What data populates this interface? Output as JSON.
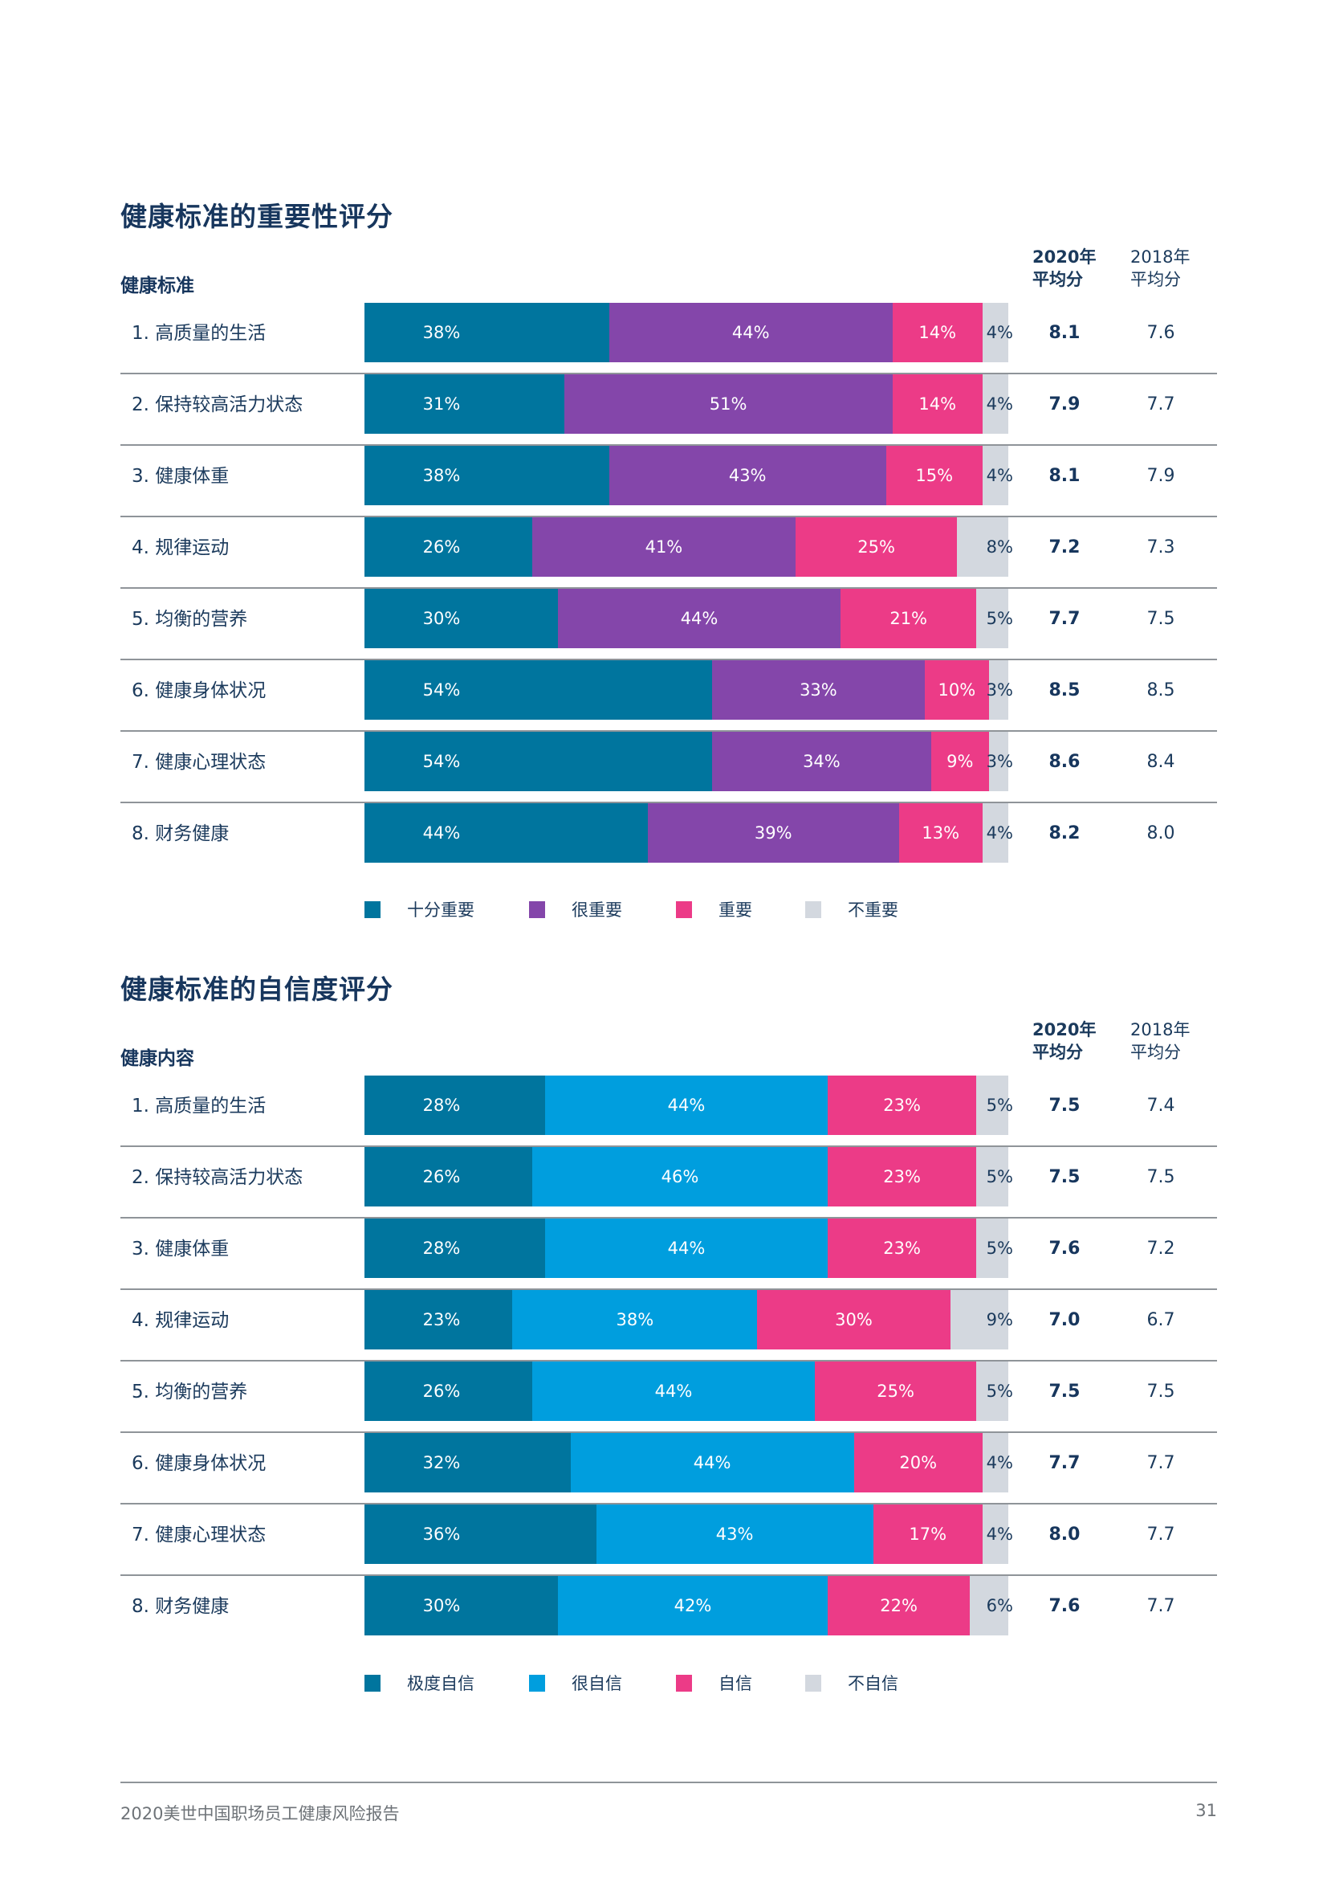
{
  "chart_data": [
    {
      "type": "bar",
      "orientation": "horizontal-stacked-100",
      "title": "健康标准的重要性评分",
      "row_header": "健康标准",
      "categories": [
        "1. 高质量的生活",
        "2. 保持较高活力状态",
        "3. 健康体重",
        "4. 规律运动",
        "5. 均衡的营养",
        "6. 健康身体状况",
        "7. 健康心理状态",
        "8. 财务健康"
      ],
      "series": [
        {
          "name": "十分重要",
          "color": "#00759e",
          "values": [
            38,
            31,
            38,
            26,
            30,
            54,
            54,
            44
          ]
        },
        {
          "name": "很重要",
          "color": "#8446aa",
          "values": [
            44,
            51,
            43,
            41,
            44,
            33,
            34,
            39
          ]
        },
        {
          "name": "重要",
          "color": "#ec3b87",
          "values": [
            14,
            14,
            15,
            25,
            21,
            10,
            9,
            13
          ]
        },
        {
          "name": "不重要",
          "color": "#d3d8df",
          "values": [
            4,
            4,
            4,
            8,
            5,
            3,
            3,
            4
          ]
        }
      ],
      "score_columns": [
        {
          "header": [
            "2020年",
            "平均分"
          ],
          "values": [
            "8.1",
            "7.9",
            "8.1",
            "7.2",
            "7.7",
            "8.5",
            "8.6",
            "8.2"
          ]
        },
        {
          "header": [
            "2018年",
            "平均分"
          ],
          "values": [
            "7.6",
            "7.7",
            "7.9",
            "7.3",
            "7.5",
            "8.5",
            "8.4",
            "8.0"
          ]
        }
      ],
      "xlim": [
        0,
        100
      ],
      "legend_position": "bottom"
    },
    {
      "type": "bar",
      "orientation": "horizontal-stacked-100",
      "title": "健康标准的自信度评分",
      "row_header": "健康内容",
      "categories": [
        "1. 高质量的生活",
        "2. 保持较高活力状态",
        "3. 健康体重",
        "4. 规律运动",
        "5. 均衡的营养",
        "6. 健康身体状况",
        "7. 健康心理状态",
        "8. 财务健康"
      ],
      "series": [
        {
          "name": "极度自信",
          "color": "#00759e",
          "values": [
            28,
            26,
            28,
            23,
            26,
            32,
            36,
            30
          ]
        },
        {
          "name": "很自信",
          "color": "#009ede",
          "values": [
            44,
            46,
            44,
            38,
            44,
            44,
            43,
            42
          ]
        },
        {
          "name": "自信",
          "color": "#ec3b87",
          "values": [
            23,
            23,
            23,
            30,
            25,
            20,
            17,
            22
          ]
        },
        {
          "name": "不自信",
          "color": "#d3d8df",
          "values": [
            5,
            5,
            5,
            9,
            5,
            4,
            4,
            6
          ]
        }
      ],
      "score_columns": [
        {
          "header": [
            "2020年",
            "平均分"
          ],
          "values": [
            "7.5",
            "7.5",
            "7.6",
            "7.0",
            "7.5",
            "7.7",
            "8.0",
            "7.6"
          ]
        },
        {
          "header": [
            "2018年",
            "平均分"
          ],
          "values": [
            "7.4",
            "7.5",
            "7.2",
            "6.7",
            "7.5",
            "7.7",
            "7.7",
            "7.7"
          ]
        }
      ],
      "xlim": [
        0,
        100
      ],
      "legend_position": "bottom"
    }
  ],
  "footer": {
    "report_title": "2020美世中国职场员工健康风险报告",
    "page_number": "31"
  }
}
